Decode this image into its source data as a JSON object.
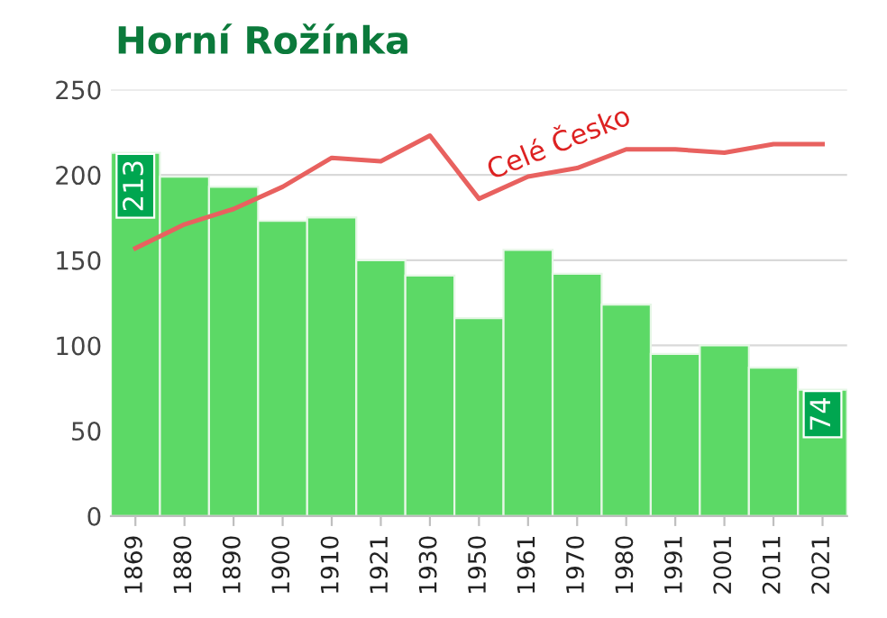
{
  "chart_data": {
    "type": "bar",
    "title": "Horní Rožínka",
    "categories": [
      "1869",
      "1880",
      "1890",
      "1900",
      "1910",
      "1921",
      "1930",
      "1950",
      "1961",
      "1970",
      "1980",
      "1991",
      "2001",
      "2011",
      "2021"
    ],
    "series": [
      {
        "color": "#5cd966",
        "values": [
          213,
          199,
          193,
          173,
          175,
          150,
          141,
          116,
          156,
          142,
          124,
          95,
          100,
          87,
          74
        ],
        "value_labels": [
          "213",
          null,
          null,
          null,
          null,
          null,
          null,
          null,
          null,
          null,
          null,
          null,
          null,
          null,
          "74"
        ]
      },
      {
        "type": "line",
        "name": "Celé Česko",
        "color": "#e8615f",
        "values": [
          157,
          171,
          180,
          193,
          210,
          208,
          223,
          186,
          199,
          204,
          215,
          215,
          213,
          218,
          218
        ]
      }
    ],
    "ylim": [
      0,
      250
    ],
    "yticks": [
      0,
      50,
      100,
      150,
      200,
      250
    ],
    "grid": "y",
    "legend": false
  }
}
